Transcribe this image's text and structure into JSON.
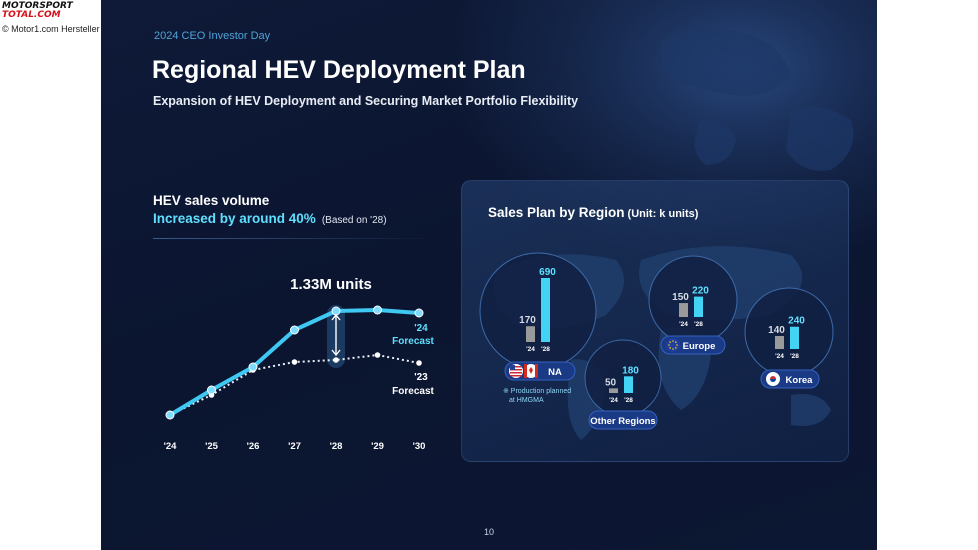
{
  "watermark": {
    "logo_top": "MOTORSPORT",
    "logo_bottom": "TOTAL.COM",
    "credit": "© Motor1.com Hersteller"
  },
  "slide": {
    "event": "2024 CEO Investor Day",
    "title": "Regional HEV Deployment Plan",
    "subtitle": "Expansion of HEV Deployment and Securing Market Portfolio Flexibility",
    "page_number": "10"
  },
  "hev_section": {
    "heading": "HEV sales volume",
    "increase_text": "Increased by around 40%",
    "increase_note": "(Based on '28)"
  },
  "colors": {
    "accent_cyan": "#5fe0ff",
    "line_2024": "#3fc8f2",
    "line_2023": "#ffffff",
    "bar_2024": "#9a9a9a",
    "bar_2028": "#43d3f5"
  },
  "chart_data": [
    {
      "type": "line",
      "x": [
        "'24",
        "'25",
        "'26",
        "'27",
        "'28",
        "'29",
        "'30"
      ],
      "series": [
        {
          "name": "'24 Forecast",
          "values": [
            0.0,
            0.25,
            0.48,
            0.85,
            1.04,
            1.05,
            1.02
          ]
        },
        {
          "name": "'23 Forecast",
          "values": [
            0.0,
            0.2,
            0.45,
            0.53,
            0.55,
            0.6,
            0.52
          ]
        }
      ],
      "annotation": "1.33M units",
      "ylim": [
        0,
        1.2
      ]
    },
    {
      "type": "bar",
      "title": "Sales Plan by Region",
      "unit": "(Unit: k units)",
      "categories": [
        "'24",
        "'28"
      ],
      "regions": [
        {
          "name": "NA",
          "values": [
            170,
            690
          ],
          "flags": [
            "us-flag",
            "canada-flag"
          ],
          "note_line1": "※ Production planned",
          "note_line2": "at HMGMA"
        },
        {
          "name": "Other Regions",
          "values": [
            50,
            180
          ]
        },
        {
          "name": "Europe",
          "values": [
            150,
            220
          ],
          "flags": [
            "eu-flag"
          ]
        },
        {
          "name": "Korea",
          "values": [
            140,
            240
          ],
          "flags": [
            "korea-flag"
          ]
        }
      ]
    }
  ]
}
